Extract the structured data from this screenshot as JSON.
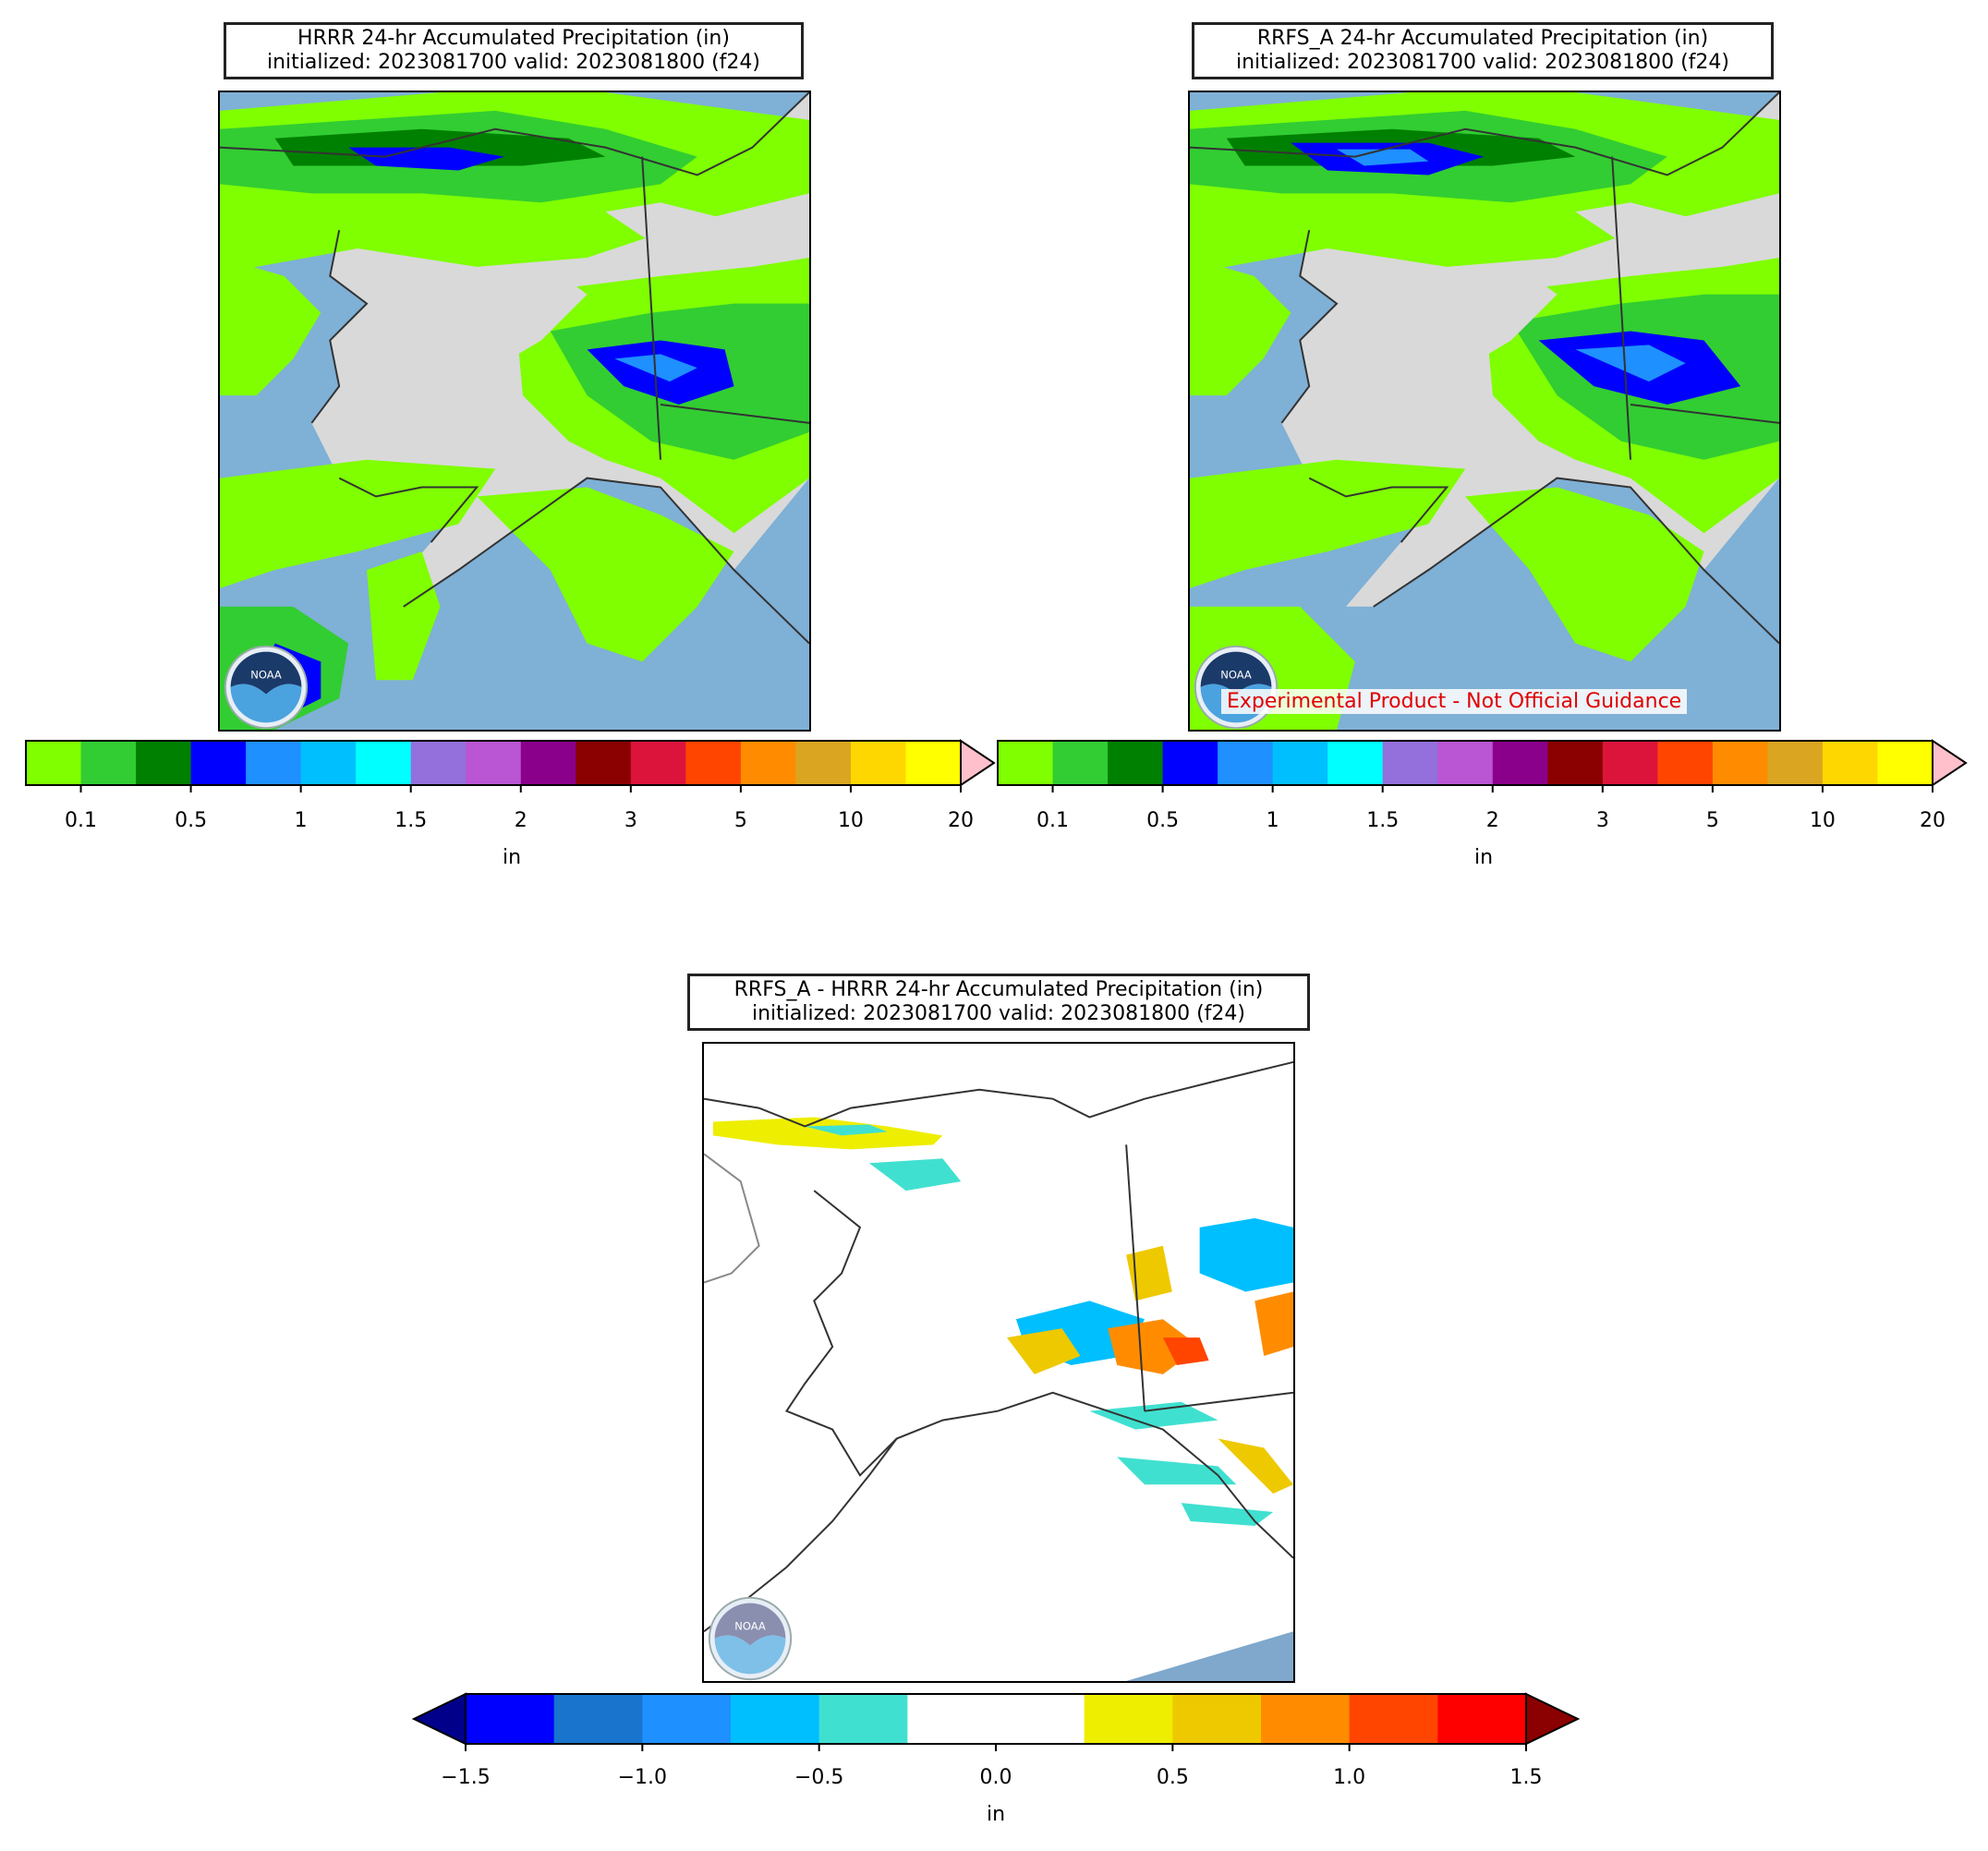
{
  "panels": [
    {
      "id": "hrrr",
      "title_line1": "HRRR 24-hr Accumulated Precipitation (in)",
      "title_line2": "initialized: 2023081700 valid: 2023081800 (f24)",
      "logo": "noaa-logo"
    },
    {
      "id": "rrfs",
      "title_line1": "RRFS_A 24-hr Accumulated Precipitation (in)",
      "title_line2": "initialized: 2023081700 valid: 2023081800 (f24)",
      "logo": "noaa-logo",
      "overlay_text": "Experimental Product - Not Official Guidance"
    },
    {
      "id": "diff",
      "title_line1": "RRFS_A - HRRR 24-hr Accumulated Precipitation (in)",
      "title_line2": "initialized: 2023081700 valid: 2023081800 (f24)",
      "logo": "noaa-logo"
    }
  ],
  "precip_colorbar": {
    "colors": [
      "#7fff00",
      "#32cd32",
      "#008000",
      "#0000ff",
      "#1e90ff",
      "#00bfff",
      "#00ffff",
      "#9370db",
      "#ba55d3",
      "#8b008b",
      "#8b0000",
      "#dc143c",
      "#ff4500",
      "#ff8c00",
      "#daa520",
      "#ffd700",
      "#ffff00"
    ],
    "extend_color": "#ffc0cb",
    "ticks": [
      "0.1",
      "0.5",
      "1",
      "1.5",
      "2",
      "3",
      "5",
      "10",
      "20"
    ],
    "unit": "in"
  },
  "diff_colorbar": {
    "colors": [
      "#0000ff",
      "#1874cd",
      "#1e90ff",
      "#00bfff",
      "#40e0d0",
      "#ffffff",
      "#ffffff",
      "#eeee00",
      "#eec900",
      "#ff8c00",
      "#ff4500",
      "#ff0000"
    ],
    "under_color": "#00008b",
    "over_color": "#8b0000",
    "ticks": [
      "−1.5",
      "−1.0",
      "−0.5",
      "0.0",
      "0.5",
      "1.0",
      "1.5"
    ],
    "unit": "in"
  },
  "colors": {
    "ocean": "#7fb0d6",
    "land_bare": "#d9d9d9",
    "coast": "#333333"
  }
}
